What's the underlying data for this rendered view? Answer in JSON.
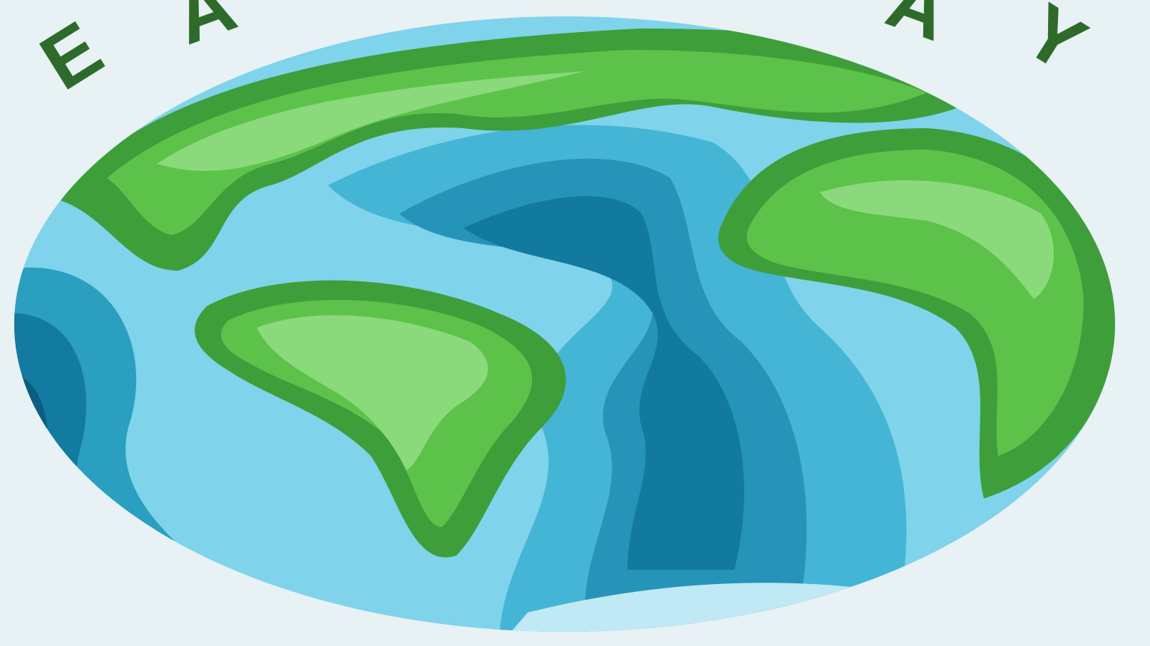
{
  "title_letters": [
    "E",
    "A",
    "A",
    "Y"
  ]
}
